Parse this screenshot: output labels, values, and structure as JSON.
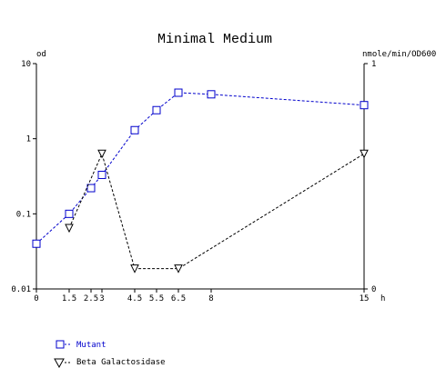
{
  "chart_data": {
    "type": "line",
    "title": "Minimal Medium",
    "xlabel": "h",
    "ylabel_left": "od",
    "ylabel_right": "nmole/min/OD600",
    "x_ticks": [
      0,
      1.5,
      2.5,
      3,
      4.5,
      5.5,
      6.5,
      8,
      15
    ],
    "x_tick_labels": [
      "0",
      "1.5",
      "2.5",
      "3",
      "4.5",
      "5.5",
      "6.5",
      "8",
      "15"
    ],
    "xlim": [
      0,
      15
    ],
    "y_left": {
      "scale": "log",
      "range": [
        0.01,
        10
      ],
      "ticks": [
        0.01,
        0.1,
        1,
        10
      ],
      "tick_labels": [
        "0.01",
        "0.1",
        "1",
        "10"
      ]
    },
    "y_right": {
      "scale": "linear",
      "range": [
        0,
        1
      ],
      "ticks": [
        0,
        1
      ],
      "tick_labels": [
        "0",
        "1"
      ]
    },
    "grid": false,
    "legend_position": "bottom-left",
    "series": [
      {
        "name": "Mutant",
        "axis": "left",
        "marker": "square",
        "color": "#0000cc",
        "x": [
          0,
          1.5,
          2.5,
          3,
          4.5,
          5.5,
          6.5,
          8,
          15
        ],
        "y": [
          0.04,
          0.1,
          0.22,
          0.33,
          1.3,
          2.4,
          4.1,
          3.9,
          2.8
        ]
      },
      {
        "name": "Beta Galactosidase",
        "axis": "right",
        "marker": "triangle-down",
        "color": "#000000",
        "x": [
          1.5,
          3,
          4.5,
          6.5,
          15
        ],
        "y": [
          0.27,
          0.6,
          0.09,
          0.09,
          0.6
        ]
      }
    ]
  }
}
